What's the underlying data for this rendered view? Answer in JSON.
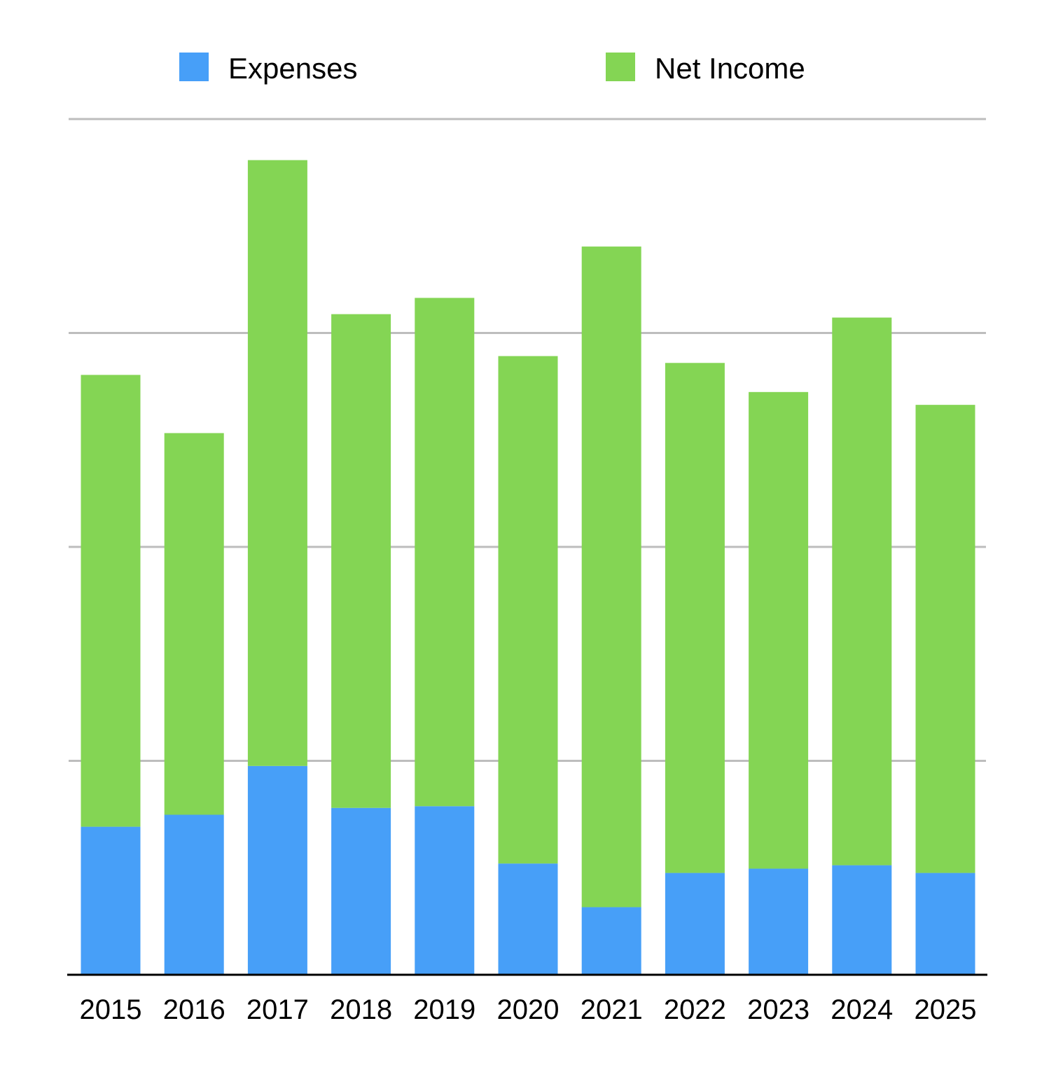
{
  "chart_data": {
    "type": "bar",
    "stacked": true,
    "title": "",
    "xlabel": "",
    "ylabel": "",
    "ylim": [
      0,
      100
    ],
    "y_gridline_step": 25,
    "y_tick_labels_shown": false,
    "grid": true,
    "legend_position": "top",
    "categories": [
      "2015",
      "2016",
      "2017",
      "2018",
      "2019",
      "2020",
      "2021",
      "2022",
      "2023",
      "2024",
      "2025"
    ],
    "series": [
      {
        "name": "Expenses",
        "color": "#479FF8",
        "values": [
          17.3,
          18.7,
          24.4,
          19.5,
          19.7,
          13.0,
          7.9,
          11.9,
          12.4,
          12.8,
          11.9
        ]
      },
      {
        "name": "Net Income",
        "color": "#84D554",
        "values": [
          52.8,
          44.6,
          70.8,
          57.7,
          59.4,
          59.3,
          77.2,
          59.6,
          55.7,
          64.0,
          54.7
        ]
      }
    ]
  }
}
